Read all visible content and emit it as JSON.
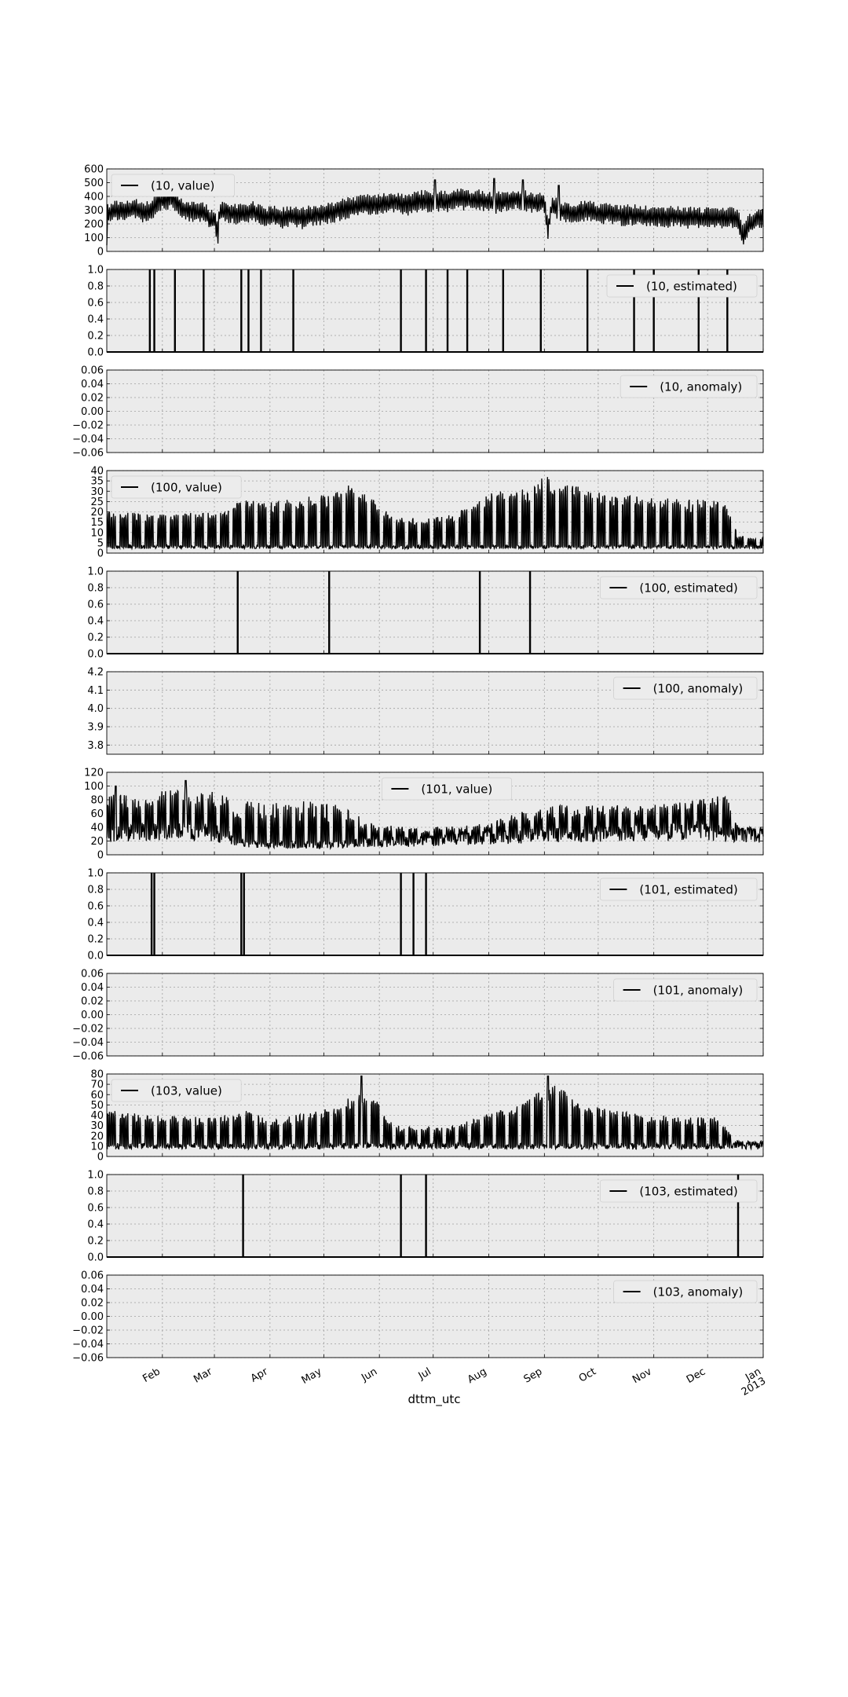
{
  "figure": {
    "xlabel": "dttm_utc",
    "x_ticks": [
      "Feb",
      "Mar",
      "Apr",
      "May",
      "Jun",
      "Jul",
      "Aug",
      "Sep",
      "Oct",
      "Nov",
      "Dec",
      "Jan"
    ],
    "x_year_label": "2013"
  },
  "colors": {
    "plot_bg": "#ebebeb",
    "line": "#000000",
    "grid": "#a0a0a0"
  },
  "chart_data": [
    {
      "type": "line",
      "series": [
        {
          "name": "(10, value)"
        }
      ],
      "legend": "top-left",
      "ylim": [
        0,
        600
      ],
      "yticks": [
        "0",
        "100",
        "200",
        "300",
        "400",
        "500",
        "600"
      ],
      "grid": true,
      "x_range": [
        "2012-01-01",
        "2013-01-01"
      ],
      "profile": [
        [
          0,
          90
        ],
        [
          0.5,
          270
        ],
        [
          3,
          290
        ],
        [
          6,
          300
        ],
        [
          9,
          290
        ],
        [
          12,
          300
        ],
        [
          15,
          320
        ],
        [
          18,
          300
        ],
        [
          21,
          280
        ],
        [
          24,
          290
        ],
        [
          27,
          340
        ],
        [
          30,
          370
        ],
        [
          33,
          380
        ],
        [
          36,
          390
        ],
        [
          39,
          360
        ],
        [
          42,
          300
        ],
        [
          45,
          300
        ],
        [
          48,
          290
        ],
        [
          51,
          280
        ],
        [
          54,
          290
        ],
        [
          56,
          260
        ],
        [
          58,
          220
        ],
        [
          60,
          240
        ],
        [
          62,
          120
        ],
        [
          63,
          300
        ],
        [
          64,
          290
        ],
        [
          67,
          290
        ],
        [
          70,
          280
        ],
        [
          74,
          270
        ],
        [
          78,
          280
        ],
        [
          82,
          290
        ],
        [
          86,
          260
        ],
        [
          89,
          250
        ],
        [
          92,
          260
        ],
        [
          95,
          250
        ],
        [
          98,
          240
        ],
        [
          100,
          255
        ],
        [
          103,
          260
        ],
        [
          106,
          250
        ],
        [
          109,
          240
        ],
        [
          112,
          255
        ],
        [
          116,
          260
        ],
        [
          120,
          270
        ],
        [
          124,
          280
        ],
        [
          128,
          290
        ],
        [
          132,
          310
        ],
        [
          136,
          320
        ],
        [
          140,
          330
        ],
        [
          144,
          340
        ],
        [
          148,
          330
        ],
        [
          152,
          340
        ],
        [
          156,
          350
        ],
        [
          160,
          360
        ],
        [
          164,
          350
        ],
        [
          168,
          340
        ],
        [
          172,
          360
        ],
        [
          176,
          370
        ],
        [
          180,
          360
        ],
        [
          184,
          370
        ],
        [
          188,
          360
        ],
        [
          192,
          370
        ],
        [
          196,
          380
        ],
        [
          200,
          375
        ],
        [
          204,
          380
        ],
        [
          208,
          370
        ],
        [
          212,
          360
        ],
        [
          216,
          350
        ],
        [
          220,
          360
        ],
        [
          224,
          370
        ],
        [
          228,
          380
        ],
        [
          232,
          370
        ],
        [
          236,
          360
        ],
        [
          240,
          350
        ],
        [
          244,
          360
        ],
        [
          246,
          150
        ],
        [
          248,
          330
        ],
        [
          252,
          300
        ],
        [
          256,
          290
        ],
        [
          260,
          280
        ],
        [
          264,
          290
        ],
        [
          268,
          300
        ],
        [
          272,
          280
        ],
        [
          276,
          270
        ],
        [
          280,
          280
        ],
        [
          284,
          270
        ],
        [
          288,
          260
        ],
        [
          292,
          270
        ],
        [
          296,
          260
        ],
        [
          300,
          255
        ],
        [
          304,
          260
        ],
        [
          308,
          250
        ],
        [
          312,
          250
        ],
        [
          316,
          255
        ],
        [
          320,
          250
        ],
        [
          324,
          245
        ],
        [
          328,
          250
        ],
        [
          332,
          240
        ],
        [
          336,
          245
        ],
        [
          340,
          250
        ],
        [
          344,
          240
        ],
        [
          348,
          250
        ],
        [
          352,
          240
        ],
        [
          354,
          120
        ],
        [
          356,
          130
        ],
        [
          358,
          200
        ],
        [
          360,
          210
        ],
        [
          362,
          230
        ],
        [
          366,
          250
        ]
      ],
      "osc": 100,
      "peaks": [
        [
          183,
          520
        ],
        [
          216,
          530
        ],
        [
          232,
          520
        ],
        [
          252,
          480
        ]
      ]
    },
    {
      "type": "line",
      "series": [
        {
          "name": "(10, estimated)"
        }
      ],
      "legend": "top-right",
      "ylim": [
        0,
        1
      ],
      "yticks": [
        "0.0",
        "0.2",
        "0.4",
        "0.6",
        "0.8",
        "1.0"
      ],
      "grid": true,
      "x_range": [
        "2012-01-01",
        "2013-01-01"
      ],
      "spikes": [
        24,
        26.5,
        38,
        54,
        75,
        79,
        86,
        104,
        164,
        178,
        190,
        201,
        221,
        242,
        268,
        294,
        305,
        330,
        346
      ]
    },
    {
      "type": "line",
      "series": [
        {
          "name": "(10, anomaly)"
        }
      ],
      "legend": "top-right",
      "ylim": [
        -0.06,
        0.06
      ],
      "yticks": [
        "−0.06",
        "−0.04",
        "−0.02",
        "0.00",
        "0.02",
        "0.04",
        "0.06"
      ],
      "grid": true,
      "x_range": [
        "2012-01-01",
        "2013-01-01"
      ],
      "constant": 0
    },
    {
      "type": "line",
      "series": [
        {
          "name": "(100, value)"
        }
      ],
      "legend": "top-left",
      "ylim": [
        0,
        40
      ],
      "yticks": [
        "0",
        "5",
        "10",
        "15",
        "20",
        "25",
        "30",
        "35",
        "40"
      ],
      "grid": true,
      "x_range": [
        "2012-01-01",
        "2013-01-01"
      ],
      "base": 3,
      "weekly": [
        [
          0,
          20
        ],
        [
          30,
          19
        ],
        [
          60,
          20
        ],
        [
          75,
          26
        ],
        [
          90,
          25
        ],
        [
          110,
          27
        ],
        [
          125,
          29
        ],
        [
          135,
          33
        ],
        [
          145,
          29
        ],
        [
          160,
          17
        ],
        [
          190,
          18
        ],
        [
          215,
          30
        ],
        [
          235,
          31
        ],
        [
          245,
          38
        ],
        [
          260,
          33
        ],
        [
          275,
          30
        ],
        [
          300,
          27
        ],
        [
          330,
          26
        ],
        [
          345,
          25
        ],
        [
          352,
          8
        ],
        [
          366,
          8
        ]
      ]
    },
    {
      "type": "line",
      "series": [
        {
          "name": "(100, estimated)"
        }
      ],
      "legend": "top-right",
      "ylim": [
        0,
        1
      ],
      "yticks": [
        "0.0",
        "0.2",
        "0.4",
        "0.6",
        "0.8",
        "1.0"
      ],
      "grid": true,
      "x_range": [
        "2012-01-01",
        "2013-01-01"
      ],
      "spikes": [
        73,
        124,
        208,
        236
      ]
    },
    {
      "type": "line",
      "series": [
        {
          "name": "(100, anomaly)"
        }
      ],
      "legend": "top-right",
      "ylim": [
        3.75,
        4.2
      ],
      "yticks": [
        "3.8",
        "3.9",
        "4.0",
        "4.1",
        "4.2"
      ],
      "grid": true,
      "x_range": [
        "2012-01-01",
        "2013-01-01"
      ],
      "constant": null
    },
    {
      "type": "line",
      "series": [
        {
          "name": "(101, value)"
        }
      ],
      "legend": "top-center",
      "ylim": [
        0,
        120
      ],
      "yticks": [
        "0",
        "20",
        "40",
        "60",
        "80",
        "100",
        "120"
      ],
      "grid": true,
      "x_range": [
        "2012-01-01",
        "2013-01-01"
      ],
      "profile": [
        [
          0,
          30
        ],
        [
          30,
          35
        ],
        [
          60,
          32
        ],
        [
          76,
          18
        ],
        [
          90,
          15
        ],
        [
          120,
          15
        ],
        [
          150,
          18
        ],
        [
          180,
          20
        ],
        [
          210,
          25
        ],
        [
          240,
          28
        ],
        [
          270,
          30
        ],
        [
          300,
          32
        ],
        [
          330,
          35
        ],
        [
          350,
          30
        ],
        [
          366,
          28
        ]
      ],
      "weekly": [
        [
          0,
          90
        ],
        [
          30,
          95
        ],
        [
          55,
          95
        ],
        [
          75,
          80
        ],
        [
          90,
          75
        ],
        [
          110,
          80
        ],
        [
          130,
          72
        ],
        [
          150,
          45
        ],
        [
          180,
          40
        ],
        [
          210,
          45
        ],
        [
          240,
          70
        ],
        [
          270,
          75
        ],
        [
          300,
          72
        ],
        [
          330,
          80
        ],
        [
          345,
          88
        ],
        [
          352,
          40
        ],
        [
          366,
          40
        ]
      ],
      "osc": 10,
      "peaks": [
        [
          5,
          100
        ],
        [
          44,
          108
        ]
      ]
    },
    {
      "type": "line",
      "series": [
        {
          "name": "(101, estimated)"
        }
      ],
      "legend": "top-right",
      "ylim": [
        0,
        1
      ],
      "yticks": [
        "0.0",
        "0.2",
        "0.4",
        "0.6",
        "0.8",
        "1.0"
      ],
      "grid": true,
      "x_range": [
        "2012-01-01",
        "2013-01-01"
      ],
      "spikes": [
        25,
        26.5,
        75,
        76.5,
        164,
        171,
        178
      ]
    },
    {
      "type": "line",
      "series": [
        {
          "name": "(101, anomaly)"
        }
      ],
      "legend": "top-right",
      "ylim": [
        -0.06,
        0.06
      ],
      "yticks": [
        "−0.06",
        "−0.04",
        "−0.02",
        "0.00",
        "0.02",
        "0.04",
        "0.06"
      ],
      "grid": true,
      "x_range": [
        "2012-01-01",
        "2013-01-01"
      ],
      "constant": 0
    },
    {
      "type": "line",
      "series": [
        {
          "name": "(103, value)"
        }
      ],
      "legend": "top-left",
      "ylim": [
        0,
        80
      ],
      "yticks": [
        "0",
        "10",
        "20",
        "30",
        "40",
        "50",
        "60",
        "70",
        "80"
      ],
      "grid": true,
      "x_range": [
        "2012-01-01",
        "2013-01-01"
      ],
      "base": 10,
      "weekly": [
        [
          0,
          45
        ],
        [
          30,
          40
        ],
        [
          60,
          38
        ],
        [
          80,
          45
        ],
        [
          90,
          35
        ],
        [
          110,
          42
        ],
        [
          130,
          50
        ],
        [
          140,
          65
        ],
        [
          150,
          55
        ],
        [
          160,
          30
        ],
        [
          190,
          28
        ],
        [
          210,
          40
        ],
        [
          230,
          50
        ],
        [
          240,
          62
        ],
        [
          250,
          70
        ],
        [
          260,
          58
        ],
        [
          280,
          45
        ],
        [
          310,
          40
        ],
        [
          340,
          38
        ],
        [
          352,
          15
        ],
        [
          366,
          15
        ]
      ],
      "peaks": [
        [
          142,
          78
        ],
        [
          246,
          78
        ]
      ]
    },
    {
      "type": "line",
      "series": [
        {
          "name": "(103, estimated)"
        }
      ],
      "legend": "top-right",
      "ylim": [
        0,
        1
      ],
      "yticks": [
        "0.0",
        "0.2",
        "0.4",
        "0.6",
        "0.8",
        "1.0"
      ],
      "grid": true,
      "x_range": [
        "2012-01-01",
        "2013-01-01"
      ],
      "spikes": [
        76,
        164,
        178,
        352
      ]
    },
    {
      "type": "line",
      "series": [
        {
          "name": "(103, anomaly)"
        }
      ],
      "legend": "top-right",
      "ylim": [
        -0.06,
        0.06
      ],
      "yticks": [
        "−0.06",
        "−0.04",
        "−0.02",
        "0.00",
        "0.02",
        "0.04",
        "0.06"
      ],
      "grid": true,
      "x_range": [
        "2012-01-01",
        "2013-01-01"
      ],
      "constant": 0
    }
  ]
}
